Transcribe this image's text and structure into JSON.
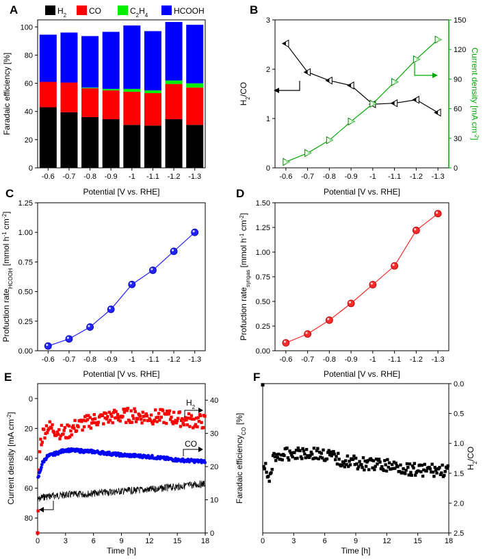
{
  "chart_data": [
    {
      "panel": "A",
      "type": "bar",
      "stacked": true,
      "categories": [
        "-0.6",
        "-0.7",
        "-0.8",
        "-0.9",
        "-1",
        "-1.1",
        "-1.2",
        "-1.3"
      ],
      "series": [
        {
          "name": "H2",
          "color": "#000000",
          "values": [
            43,
            39.5,
            36,
            34.5,
            30.5,
            30,
            34.5,
            30.5
          ]
        },
        {
          "name": "CO",
          "color": "#ff0000",
          "values": [
            18,
            21,
            20.5,
            20.5,
            23.5,
            23,
            25,
            26.5
          ]
        },
        {
          "name": "C2H4",
          "color": "#00ee00",
          "values": [
            0,
            0,
            0.5,
            1,
            2,
            2,
            2.5,
            3
          ]
        },
        {
          "name": "HCOOH",
          "color": "#0000ff",
          "values": [
            33.5,
            35.5,
            36.5,
            40.5,
            45,
            42,
            41.5,
            41.5
          ]
        }
      ],
      "legend": [
        {
          "base": "H",
          "sub": "2",
          "color": "#000000"
        },
        {
          "base": "CO",
          "sub": "",
          "color": "#ff0000"
        },
        {
          "base": "C",
          "sub": "2",
          "base2": "H",
          "sub2": "4",
          "color": "#00ee00"
        },
        {
          "base": "HCOOH",
          "sub": "",
          "color": "#0000ff"
        }
      ],
      "ylabel": "Faradaic efficiency [%]",
      "xlabel": "Potential [V vs. RHE]",
      "ylim": [
        0,
        105
      ],
      "yticks": [
        "0",
        "20",
        "40",
        "60",
        "80",
        "100"
      ]
    },
    {
      "panel": "B",
      "type": "line",
      "categories": [
        "-0.6",
        "-0.7",
        "-0.8",
        "-0.9",
        "-1",
        "-1.1",
        "-1.2",
        "-1.3"
      ],
      "series": [
        {
          "name": "H2/CO",
          "axis": "left",
          "color": "#000000",
          "values": [
            2.52,
            1.94,
            1.77,
            1.67,
            1.29,
            1.31,
            1.38,
            1.12
          ]
        },
        {
          "name": "Current density",
          "axis": "right",
          "color": "#00aa00",
          "values": [
            6,
            15,
            28,
            47,
            65,
            87,
            110,
            130
          ]
        }
      ],
      "ylabel_left": {
        "base": "H",
        "sub": "2",
        "rest": "/CO"
      },
      "ylabel_right": {
        "base": "Current density [mA cm",
        "sup": "-2",
        "rest": "]"
      },
      "xlabel": "Potential [V vs. RHE]",
      "ylim_left": [
        0,
        3
      ],
      "ylim_right": [
        0,
        150
      ],
      "yticks_left": [
        "0",
        "1",
        "2",
        "3"
      ],
      "yticks_right": [
        "0",
        "30",
        "60",
        "90",
        "120",
        "150"
      ]
    },
    {
      "panel": "C",
      "type": "line",
      "categories": [
        "-0.6",
        "-0.7",
        "-0.8",
        "-0.9",
        "-1",
        "-1.1",
        "-1.2",
        "-1.3"
      ],
      "series": [
        {
          "name": "Production rate HCOOH",
          "color": "#0000ff",
          "values": [
            0.04,
            0.1,
            0.2,
            0.35,
            0.56,
            0.68,
            0.84,
            1.0
          ]
        }
      ],
      "ylabel": {
        "base": "Profuction rate",
        "sub": "HCOOH",
        "rest": " [mmol h",
        "sup1": "-1",
        "mid": " cm",
        "sup2": "-2",
        "end": "]"
      },
      "xlabel": "Potential [V vs. RHE]",
      "ylim": [
        0,
        1.25
      ],
      "yticks": [
        "0.00",
        "0.25",
        "0.50",
        "0.75",
        "1.00",
        "1.25"
      ]
    },
    {
      "panel": "D",
      "type": "line",
      "categories": [
        "-0.6",
        "-0.7",
        "-0.8",
        "-0.9",
        "-1",
        "-1.1",
        "-1.2",
        "-1.3"
      ],
      "series": [
        {
          "name": "Production rate syngas",
          "color": "#ff0000",
          "values": [
            0.08,
            0.17,
            0.31,
            0.48,
            0.67,
            0.86,
            1.22,
            1.39
          ]
        }
      ],
      "ylabel": {
        "base": "Profuction rate",
        "sub": "syngas",
        "rest": " [mmol h",
        "sup1": "-1",
        "mid": " cm",
        "sup2": "-2",
        "end": "]"
      },
      "xlabel": "Potential [V vs. RHE]",
      "ylim": [
        0,
        1.5
      ],
      "yticks": [
        "0.00",
        "0.25",
        "0.50",
        "0.75",
        "1.00",
        "1.25",
        "1.50"
      ]
    },
    {
      "panel": "E",
      "type": "scatter",
      "x_range": [
        0,
        18
      ],
      "xticks": [
        "0",
        "3",
        "6",
        "9",
        "12",
        "15",
        "18"
      ],
      "xlabel": "Time [h]",
      "ylabel_left": {
        "base": "Current density [mA cm",
        "sup": "-2",
        "rest": "]"
      },
      "ylabel_right": {
        "base": "Faradaic efficiency",
        "sub": "CO",
        "rest": " [%]"
      },
      "ylim_left": [
        90,
        -10
      ],
      "ylim_right": [
        0,
        45
      ],
      "yticks_left": [
        "0",
        "20",
        "40",
        "60",
        "80"
      ],
      "yticks_right": [
        "0",
        "10",
        "20",
        "30",
        "40"
      ],
      "annotations": [
        {
          "base": "H",
          "sub": "2"
        },
        {
          "base": "CO",
          "sub": ""
        }
      ],
      "series": [
        {
          "name": "Current density",
          "axis": "left",
          "color": "#000000",
          "style": "noisy-line",
          "points": [
            [
              0,
              68
            ],
            [
              0.5,
              66
            ],
            [
              1,
              65.5
            ],
            [
              2,
              65
            ],
            [
              3,
              64.5
            ],
            [
              5,
              64
            ],
            [
              7,
              63
            ],
            [
              9,
              62
            ],
            [
              12,
              61
            ],
            [
              15,
              59
            ],
            [
              18,
              57
            ]
          ]
        },
        {
          "name": "H2 FE",
          "axis": "right",
          "color": "#ff0000",
          "style": "squares",
          "points": [
            [
              0,
              0
            ],
            [
              0.2,
              26
            ],
            [
              0.6,
              30
            ],
            [
              1,
              32
            ],
            [
              2,
              31
            ],
            [
              3,
              30
            ],
            [
              4,
              32
            ],
            [
              6,
              34
            ],
            [
              8,
              35
            ],
            [
              10,
              35.5
            ],
            [
              12,
              35
            ],
            [
              14,
              35
            ],
            [
              16,
              34
            ],
            [
              18,
              33.5
            ]
          ]
        },
        {
          "name": "CO FE",
          "axis": "right",
          "color": "#0000ff",
          "style": "circles",
          "points": [
            [
              0,
              16
            ],
            [
              0.3,
              19
            ],
            [
              0.5,
              21
            ],
            [
              1,
              23
            ],
            [
              2,
              24
            ],
            [
              3,
              25
            ],
            [
              6,
              24.5
            ],
            [
              9,
              23.5
            ],
            [
              12,
              23
            ],
            [
              15,
              22
            ],
            [
              18,
              21.5
            ]
          ]
        }
      ]
    },
    {
      "panel": "F",
      "type": "scatter",
      "x_range": [
        0,
        18
      ],
      "xticks": [
        "0",
        "3",
        "6",
        "9",
        "12",
        "15",
        "18"
      ],
      "xlabel": "Time [h]",
      "ylabel_right": {
        "base": "H",
        "sub": "2",
        "rest": "/CO"
      },
      "ylim": [
        0,
        2.5
      ],
      "inverted": true,
      "yticks": [
        "0.0",
        "0.5",
        "1.0",
        "1.5",
        "2.0",
        "2.5"
      ],
      "series": [
        {
          "name": "H2/CO",
          "color": "#000000",
          "style": "squares",
          "points": [
            [
              0,
              0.02
            ],
            [
              0.3,
              1.4
            ],
            [
              0.5,
              1.7
            ],
            [
              1,
              1.25
            ],
            [
              2,
              1.2
            ],
            [
              3,
              1.15
            ],
            [
              4,
              1.15
            ],
            [
              6,
              1.2
            ],
            [
              8,
              1.3
            ],
            [
              10,
              1.35
            ],
            [
              12,
              1.38
            ],
            [
              14,
              1.42
            ],
            [
              16,
              1.45
            ],
            [
              18,
              1.47
            ]
          ]
        }
      ]
    }
  ]
}
